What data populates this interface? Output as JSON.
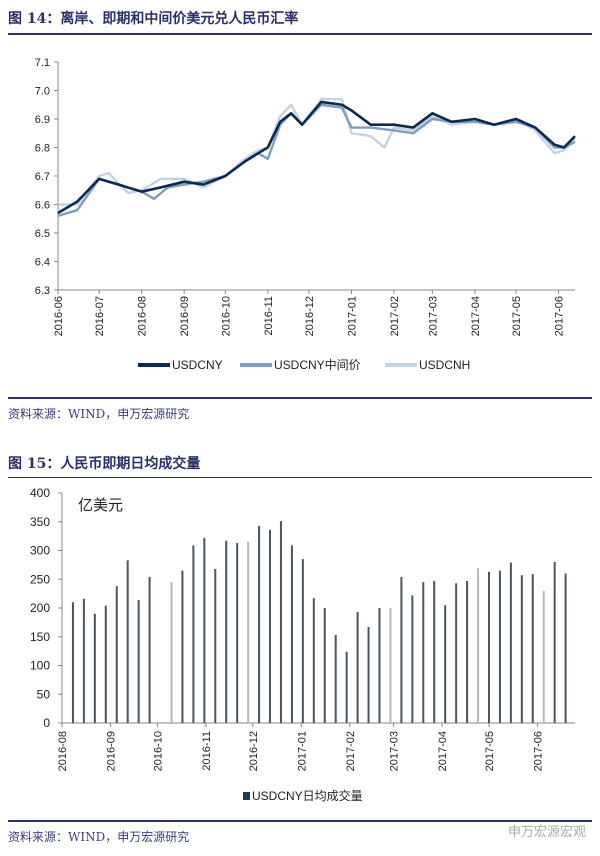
{
  "figure14": {
    "title": "图 14：离岸、即期和中间价美元兑人民币汇率",
    "source": "资料来源：WIND，申万宏源研究"
  },
  "figure15": {
    "title": "图 15：人民币即期日均成交量",
    "source": "资料来源：WIND，申万宏源研究"
  },
  "watermark": "申万宏源宏观",
  "chart_data": [
    {
      "type": "line",
      "ylim": [
        6.3,
        7.1
      ],
      "yticks": [
        "6.3",
        "6.4",
        "6.5",
        "6.6",
        "6.7",
        "6.8",
        "6.9",
        "7.0",
        "7.1"
      ],
      "xticks": [
        "2016-06",
        "2016-07",
        "2016-08",
        "2016-09",
        "2016-10",
        "2016-11",
        "2016-12",
        "2017-01",
        "2017-02",
        "2017-03",
        "2017-04",
        "2017-05",
        "2017-06"
      ],
      "xlim": [
        "2016-06-01",
        "2017-06-13"
      ],
      "legend_position": "bottom",
      "grid": false,
      "series": [
        {
          "name": "USDCNY",
          "color": "#0d2a4e",
          "points": [
            [
              "2016-06-01",
              6.57
            ],
            [
              "2016-06-15",
              6.61
            ],
            [
              "2016-07-01",
              6.69
            ],
            [
              "2016-07-15",
              6.67
            ],
            [
              "2016-08-01",
              6.645
            ],
            [
              "2016-08-15",
              6.66
            ],
            [
              "2016-09-01",
              6.68
            ],
            [
              "2016-09-15",
              6.67
            ],
            [
              "2016-10-01",
              6.7
            ],
            [
              "2016-10-15",
              6.75
            ],
            [
              "2016-10-25",
              6.78
            ],
            [
              "2016-11-01",
              6.8
            ],
            [
              "2016-11-10",
              6.89
            ],
            [
              "2016-11-18",
              6.92
            ],
            [
              "2016-11-26",
              6.88
            ],
            [
              "2016-12-10",
              6.96
            ],
            [
              "2016-12-25",
              6.95
            ],
            [
              "2017-01-01",
              6.93
            ],
            [
              "2017-01-15",
              6.88
            ],
            [
              "2017-02-01",
              6.88
            ],
            [
              "2017-02-15",
              6.87
            ],
            [
              "2017-03-01",
              6.92
            ],
            [
              "2017-03-15",
              6.89
            ],
            [
              "2017-04-01",
              6.9
            ],
            [
              "2017-04-15",
              6.88
            ],
            [
              "2017-05-01",
              6.9
            ],
            [
              "2017-05-15",
              6.87
            ],
            [
              "2017-05-29",
              6.81
            ],
            [
              "2017-06-05",
              6.8
            ],
            [
              "2017-06-13",
              6.84
            ]
          ]
        },
        {
          "name": "USDCNY中间价",
          "color": "#7f9dbf",
          "points": [
            [
              "2016-06-01",
              6.56
            ],
            [
              "2016-06-15",
              6.58
            ],
            [
              "2016-07-01",
              6.69
            ],
            [
              "2016-07-15",
              6.67
            ],
            [
              "2016-08-01",
              6.645
            ],
            [
              "2016-08-10",
              6.62
            ],
            [
              "2016-08-20",
              6.66
            ],
            [
              "2016-09-01",
              6.67
            ],
            [
              "2016-09-15",
              6.68
            ],
            [
              "2016-10-01",
              6.7
            ],
            [
              "2016-10-15",
              6.75
            ],
            [
              "2016-10-25",
              6.78
            ],
            [
              "2016-11-01",
              6.76
            ],
            [
              "2016-11-10",
              6.88
            ],
            [
              "2016-11-18",
              6.92
            ],
            [
              "2016-11-26",
              6.88
            ],
            [
              "2016-12-10",
              6.95
            ],
            [
              "2016-12-25",
              6.94
            ],
            [
              "2017-01-01",
              6.87
            ],
            [
              "2017-01-15",
              6.87
            ],
            [
              "2017-02-01",
              6.86
            ],
            [
              "2017-02-15",
              6.85
            ],
            [
              "2017-03-01",
              6.9
            ],
            [
              "2017-03-15",
              6.89
            ],
            [
              "2017-04-01",
              6.89
            ],
            [
              "2017-04-15",
              6.88
            ],
            [
              "2017-05-01",
              6.89
            ],
            [
              "2017-05-15",
              6.87
            ],
            [
              "2017-05-29",
              6.8
            ],
            [
              "2017-06-05",
              6.8
            ],
            [
              "2017-06-13",
              6.82
            ]
          ]
        },
        {
          "name": "USDCNH",
          "color": "#c2d3e6",
          "points": [
            [
              "2016-06-01",
              6.6
            ],
            [
              "2016-06-15",
              6.6
            ],
            [
              "2016-07-01",
              6.7
            ],
            [
              "2016-07-08",
              6.71
            ],
            [
              "2016-07-22",
              6.64
            ],
            [
              "2016-08-01",
              6.65
            ],
            [
              "2016-08-15",
              6.69
            ],
            [
              "2016-09-01",
              6.69
            ],
            [
              "2016-09-15",
              6.66
            ],
            [
              "2016-10-01",
              6.7
            ],
            [
              "2016-10-15",
              6.76
            ],
            [
              "2016-10-25",
              6.79
            ],
            [
              "2016-11-01",
              6.8
            ],
            [
              "2016-11-10",
              6.91
            ],
            [
              "2016-11-18",
              6.95
            ],
            [
              "2016-11-26",
              6.88
            ],
            [
              "2016-12-10",
              6.97
            ],
            [
              "2016-12-25",
              6.97
            ],
            [
              "2017-01-01",
              6.85
            ],
            [
              "2017-01-15",
              6.84
            ],
            [
              "2017-01-25",
              6.8
            ],
            [
              "2017-02-01",
              6.87
            ],
            [
              "2017-02-15",
              6.86
            ],
            [
              "2017-03-01",
              6.91
            ],
            [
              "2017-03-15",
              6.88
            ],
            [
              "2017-04-01",
              6.89
            ],
            [
              "2017-04-15",
              6.88
            ],
            [
              "2017-05-01",
              6.9
            ],
            [
              "2017-05-15",
              6.86
            ],
            [
              "2017-05-29",
              6.78
            ],
            [
              "2017-06-05",
              6.79
            ],
            [
              "2017-06-13",
              6.83
            ]
          ]
        }
      ]
    },
    {
      "type": "bar",
      "unit_label": "亿美元",
      "ylim": [
        0,
        400
      ],
      "yticks": [
        "0",
        "50",
        "100",
        "150",
        "200",
        "250",
        "300",
        "350",
        "400"
      ],
      "xticks": [
        "2016-08",
        "2016-09",
        "2016-10",
        "2016-11",
        "2016-12",
        "2017-01",
        "2017-02",
        "2017-03",
        "2017-04",
        "2017-05",
        "2017-06"
      ],
      "xlim": [
        "2016-08-01",
        "2017-06-25"
      ],
      "legend_position": "bottom",
      "grid": false,
      "series": [
        {
          "name": "USDCNY日均成交量",
          "color": "#4a5560",
          "light_color": "#b5b9bd"
        }
      ],
      "dates": [
        "2016-08-08",
        "2016-08-15",
        "2016-08-22",
        "2016-08-29",
        "2016-09-05",
        "2016-09-12",
        "2016-09-19",
        "2016-09-26",
        "2016-10-10",
        "2016-10-17",
        "2016-10-24",
        "2016-10-31",
        "2016-11-07",
        "2016-11-14",
        "2016-11-21",
        "2016-11-28",
        "2016-12-05",
        "2016-12-12",
        "2016-12-19",
        "2016-12-26",
        "2017-01-02",
        "2017-01-09",
        "2017-01-16",
        "2017-01-23",
        "2017-01-30",
        "2017-02-06",
        "2017-02-13",
        "2017-02-20",
        "2017-02-27",
        "2017-03-06",
        "2017-03-13",
        "2017-03-20",
        "2017-03-27",
        "2017-04-03",
        "2017-04-10",
        "2017-04-17",
        "2017-04-24",
        "2017-05-01",
        "2017-05-08",
        "2017-05-15",
        "2017-05-22",
        "2017-05-29",
        "2017-06-05",
        "2017-06-12",
        "2017-06-19"
      ],
      "values": [
        210,
        216,
        190,
        204,
        238,
        283,
        214,
        254,
        245,
        265,
        309,
        322,
        268,
        317,
        313,
        315,
        343,
        336,
        351,
        309,
        285,
        217,
        200,
        153,
        124,
        193,
        167,
        200,
        200,
        254,
        222,
        245,
        247,
        205,
        243,
        247,
        269,
        263,
        265,
        279,
        257,
        259,
        230,
        280,
        260
      ],
      "light_bars": [
        8,
        15,
        28,
        36,
        42
      ]
    }
  ]
}
